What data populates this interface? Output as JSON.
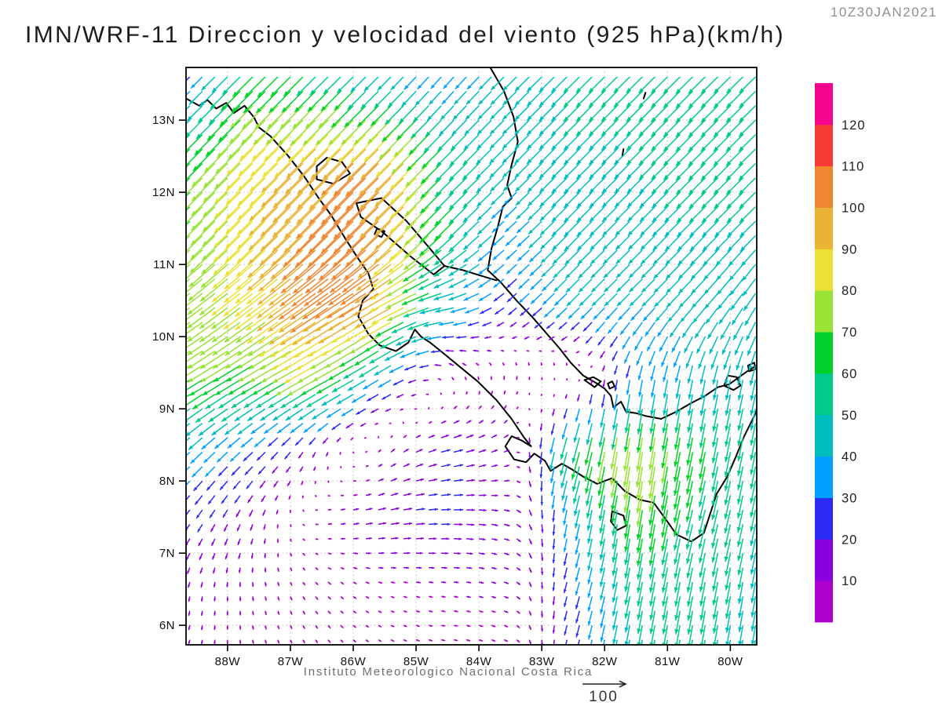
{
  "title": "IMN/WRF-11 Direccion y velocidad del viento (925 hPa)(km/h)",
  "timestamp": "10Z30JAN2021",
  "footer": "Instituto Meteorologico Nacional Costa Rica",
  "reference_arrow": {
    "label": "100",
    "value_kmh": 100
  },
  "axes": {
    "lat_labels": [
      "13N",
      "12N",
      "11N",
      "10N",
      "9N",
      "8N",
      "7N",
      "6N"
    ],
    "lat_values": [
      13,
      12,
      11,
      10,
      9,
      8,
      7,
      6
    ],
    "lon_labels": [
      "88W",
      "87W",
      "86W",
      "85W",
      "84W",
      "83W",
      "82W",
      "81W",
      "80W"
    ],
    "lon_values": [
      -88,
      -87,
      -86,
      -85,
      -84,
      -83,
      -82,
      -81,
      -80
    ]
  },
  "colorbar": {
    "tick_labels": [
      "10",
      "20",
      "30",
      "40",
      "50",
      "60",
      "70",
      "80",
      "90",
      "100",
      "110",
      "120"
    ],
    "segment_colors": [
      "#B000CE",
      "#8A00DE",
      "#2B2BF2",
      "#00A1FF",
      "#00BEBE",
      "#00CB8C",
      "#00D22B",
      "#98E335",
      "#EBE135",
      "#EBB335",
      "#EF8730",
      "#F43B35",
      "#F3058D"
    ]
  },
  "chart_data": {
    "type": "vector-field",
    "title": "IMN/WRF-11 Direccion y velocidad del viento (925 hPa)(km/h)",
    "valid_time": "10Z30JAN2021",
    "units": "km/h",
    "level": "925 hPa",
    "legend_position": "right",
    "grid_on": true,
    "map_extent": {
      "lon_min": -88.66,
      "lon_max": -79.58,
      "lat_min": 5.73,
      "lat_max": 13.73
    },
    "gridline_lons": [
      -88,
      -87,
      -86,
      -85,
      -84,
      -83,
      -82,
      -81,
      -80
    ],
    "gridline_lats": [
      6,
      7,
      8,
      9,
      10,
      11,
      12,
      13
    ],
    "speed_bins_kmh": [
      10,
      20,
      30,
      40,
      50,
      60,
      70,
      80,
      90,
      100,
      110,
      120
    ],
    "bin_colors": [
      "#B000CE",
      "#8A00DE",
      "#2B2BF2",
      "#00A1FF",
      "#00BEBE",
      "#00CB8C",
      "#00D22B",
      "#98E335",
      "#EBE135",
      "#EBB335",
      "#EF8730",
      "#F43B35",
      "#F3058D"
    ],
    "wind_grid": {
      "lons": [
        -88.7,
        -87.5,
        -86.5,
        -85.5,
        -84.5,
        -83.5,
        -82.5,
        -81.5,
        -80.5,
        -79.5
      ],
      "lats": [
        5.7,
        6.5,
        7.5,
        8.5,
        9.5,
        10.5,
        11.5,
        12.5,
        13.75
      ],
      "u_kmh": [
        [
          -3,
          2,
          5,
          7,
          9,
          8,
          -6,
          -9,
          -9,
          -7
        ],
        [
          -3,
          2,
          6,
          8,
          10,
          10,
          -8,
          -10,
          -10,
          -8
        ],
        [
          -14,
          -5,
          8,
          20,
          22,
          12,
          -8,
          -10,
          -14,
          -10
        ],
        [
          -30,
          -22,
          -7,
          6,
          22,
          10,
          -18,
          -12,
          -12,
          -10
        ],
        [
          -62,
          -58,
          -70,
          -35,
          -8,
          0,
          2,
          -6,
          -8,
          -10
        ],
        [
          -60,
          -66,
          -85,
          -90,
          -48,
          -20,
          -28,
          -28,
          -30,
          -25
        ],
        [
          -48,
          -62,
          -72,
          -72,
          -46,
          -24,
          -35,
          -32,
          -35,
          -35
        ],
        [
          -45,
          -60,
          -68,
          -74,
          -42,
          -32,
          -35,
          -35,
          -38,
          -38
        ],
        [
          -15,
          -45,
          -38,
          -25,
          -20,
          -30,
          -36,
          -36,
          -38,
          -36
        ]
      ],
      "v_kmh": [
        [
          -10,
          -9,
          -7,
          -4,
          -2,
          -4,
          -23,
          -48,
          -50,
          -43
        ],
        [
          -12,
          -10,
          -7,
          -3,
          -1,
          -4,
          -26,
          -53,
          -55,
          -46
        ],
        [
          -20,
          -14,
          2,
          4,
          0,
          -4,
          -35,
          -66,
          -56,
          -48
        ],
        [
          -28,
          -20,
          -13,
          8,
          6,
          6,
          -62,
          -82,
          -62,
          -50
        ],
        [
          -38,
          -34,
          -38,
          -22,
          6,
          10,
          10,
          -32,
          -42,
          -46
        ],
        [
          -45,
          -50,
          -58,
          -52,
          -10,
          -18,
          -28,
          -28,
          -32,
          -40
        ],
        [
          -48,
          -62,
          -72,
          -72,
          -46,
          -22,
          -35,
          -32,
          -35,
          -35
        ],
        [
          -45,
          -60,
          -68,
          -74,
          -42,
          -32,
          -35,
          -35,
          -38,
          -38
        ],
        [
          -15,
          -45,
          -38,
          -25,
          -24,
          -30,
          -36,
          -36,
          -38,
          -36
        ]
      ]
    },
    "coastlines": [
      [
        [
          -88.66,
          13.3
        ],
        [
          -88.45,
          13.2
        ],
        [
          -88.32,
          13.28
        ],
        [
          -88.18,
          13.16
        ],
        [
          -88.02,
          13.24
        ],
        [
          -87.9,
          13.1
        ],
        [
          -87.73,
          13.2
        ],
        [
          -87.58,
          13.04
        ],
        [
          -87.5,
          12.9
        ],
        [
          -87.32,
          12.78
        ],
        [
          -87.05,
          12.52
        ],
        [
          -86.78,
          12.22
        ],
        [
          -86.55,
          11.92
        ],
        [
          -86.35,
          11.68
        ],
        [
          -86.12,
          11.35
        ],
        [
          -85.92,
          11.08
        ],
        [
          -85.76,
          10.88
        ],
        [
          -85.68,
          10.66
        ],
        [
          -85.85,
          10.5
        ],
        [
          -85.92,
          10.28
        ],
        [
          -85.76,
          10.04
        ],
        [
          -85.58,
          9.88
        ],
        [
          -85.32,
          9.8
        ],
        [
          -85.12,
          9.92
        ],
        [
          -85.02,
          10.1
        ],
        [
          -84.92,
          10.0
        ],
        [
          -84.78,
          9.92
        ],
        [
          -84.58,
          9.78
        ],
        [
          -84.3,
          9.58
        ],
        [
          -84.02,
          9.38
        ],
        [
          -83.72,
          9.12
        ],
        [
          -83.48,
          8.86
        ],
        [
          -83.28,
          8.6
        ],
        [
          -83.17,
          8.48
        ],
        [
          -83.32,
          8.56
        ],
        [
          -83.48,
          8.62
        ],
        [
          -83.58,
          8.48
        ],
        [
          -83.44,
          8.3
        ],
        [
          -83.25,
          8.26
        ],
        [
          -83.12,
          8.38
        ],
        [
          -82.95,
          8.28
        ],
        [
          -82.86,
          8.14
        ],
        [
          -82.68,
          8.24
        ],
        [
          -82.52,
          8.16
        ],
        [
          -82.34,
          8.06
        ],
        [
          -82.12,
          7.96
        ],
        [
          -81.88,
          8.04
        ],
        [
          -81.68,
          7.86
        ],
        [
          -81.44,
          7.74
        ],
        [
          -81.22,
          7.7
        ],
        [
          -81.02,
          7.46
        ],
        [
          -80.86,
          7.26
        ],
        [
          -80.62,
          7.16
        ],
        [
          -80.42,
          7.28
        ],
        [
          -80.32,
          7.55
        ],
        [
          -80.22,
          7.82
        ],
        [
          -80.05,
          8.06
        ],
        [
          -79.92,
          8.32
        ],
        [
          -79.78,
          8.62
        ],
        [
          -79.62,
          8.9
        ],
        [
          -79.58,
          8.98
        ]
      ],
      [
        [
          -83.82,
          13.73
        ],
        [
          -83.6,
          13.4
        ],
        [
          -83.45,
          13.05
        ],
        [
          -83.38,
          12.7
        ],
        [
          -83.48,
          12.38
        ],
        [
          -83.55,
          12.1
        ],
        [
          -83.48,
          11.92
        ],
        [
          -83.62,
          11.8
        ],
        [
          -83.7,
          11.52
        ],
        [
          -83.8,
          11.22
        ],
        [
          -83.86,
          10.92
        ],
        [
          -83.66,
          10.76
        ],
        [
          -83.4,
          10.5
        ],
        [
          -83.14,
          10.26
        ],
        [
          -82.94,
          10.06
        ],
        [
          -82.72,
          9.84
        ],
        [
          -82.54,
          9.64
        ],
        [
          -82.34,
          9.46
        ],
        [
          -82.14,
          9.36
        ],
        [
          -82.0,
          9.28
        ],
        [
          -81.9,
          9.18
        ],
        [
          -81.86,
          9.02
        ],
        [
          -81.74,
          9.1
        ],
        [
          -81.66,
          8.96
        ],
        [
          -81.5,
          8.94
        ],
        [
          -81.34,
          8.9
        ],
        [
          -81.1,
          8.86
        ],
        [
          -80.86,
          8.96
        ],
        [
          -80.62,
          9.08
        ],
        [
          -80.4,
          9.18
        ],
        [
          -80.2,
          9.3
        ],
        [
          -80.02,
          9.34
        ],
        [
          -79.86,
          9.44
        ],
        [
          -79.7,
          9.54
        ],
        [
          -79.58,
          9.6
        ]
      ],
      [
        [
          -85.95,
          11.85
        ],
        [
          -85.55,
          11.92
        ],
        [
          -85.15,
          11.6
        ],
        [
          -84.78,
          11.22
        ],
        [
          -84.55,
          10.98
        ],
        [
          -84.72,
          10.86
        ],
        [
          -85.1,
          11.12
        ],
        [
          -85.52,
          11.44
        ],
        [
          -85.88,
          11.66
        ],
        [
          -85.95,
          11.85
        ]
      ],
      [
        [
          -86.58,
          12.18
        ],
        [
          -86.32,
          12.12
        ],
        [
          -86.05,
          12.26
        ],
        [
          -86.18,
          12.42
        ],
        [
          -86.42,
          12.48
        ],
        [
          -86.58,
          12.36
        ],
        [
          -86.58,
          12.18
        ]
      ],
      [
        [
          -85.62,
          11.5
        ],
        [
          -85.5,
          11.46
        ],
        [
          -85.55,
          11.38
        ],
        [
          -85.66,
          11.42
        ],
        [
          -85.62,
          11.5
        ]
      ],
      [
        [
          -84.55,
          10.98
        ],
        [
          -84.25,
          10.92
        ],
        [
          -83.95,
          10.84
        ],
        [
          -83.72,
          10.78
        ]
      ],
      [
        [
          -82.32,
          9.4
        ],
        [
          -82.18,
          9.44
        ],
        [
          -82.06,
          9.38
        ],
        [
          -82.16,
          9.3
        ],
        [
          -82.32,
          9.4
        ]
      ],
      [
        [
          -81.95,
          9.35
        ],
        [
          -81.88,
          9.38
        ],
        [
          -81.84,
          9.31
        ],
        [
          -81.92,
          9.28
        ],
        [
          -81.95,
          9.35
        ]
      ],
      [
        [
          -81.88,
          7.58
        ],
        [
          -81.7,
          7.52
        ],
        [
          -81.66,
          7.38
        ],
        [
          -81.8,
          7.32
        ],
        [
          -81.9,
          7.44
        ],
        [
          -81.88,
          7.58
        ]
      ],
      [
        [
          -80.1,
          9.32
        ],
        [
          -79.95,
          9.26
        ],
        [
          -79.84,
          9.32
        ],
        [
          -79.9,
          9.44
        ],
        [
          -80.04,
          9.46
        ],
        [
          -80.1,
          9.32
        ]
      ],
      [
        [
          -79.72,
          9.6
        ],
        [
          -79.62,
          9.64
        ],
        [
          -79.6,
          9.55
        ],
        [
          -79.7,
          9.52
        ],
        [
          -79.72,
          9.6
        ]
      ],
      [
        [
          -81.72,
          12.5
        ],
        [
          -81.7,
          12.6
        ]
      ],
      [
        [
          -81.38,
          13.3
        ],
        [
          -81.35,
          13.38
        ]
      ]
    ]
  }
}
